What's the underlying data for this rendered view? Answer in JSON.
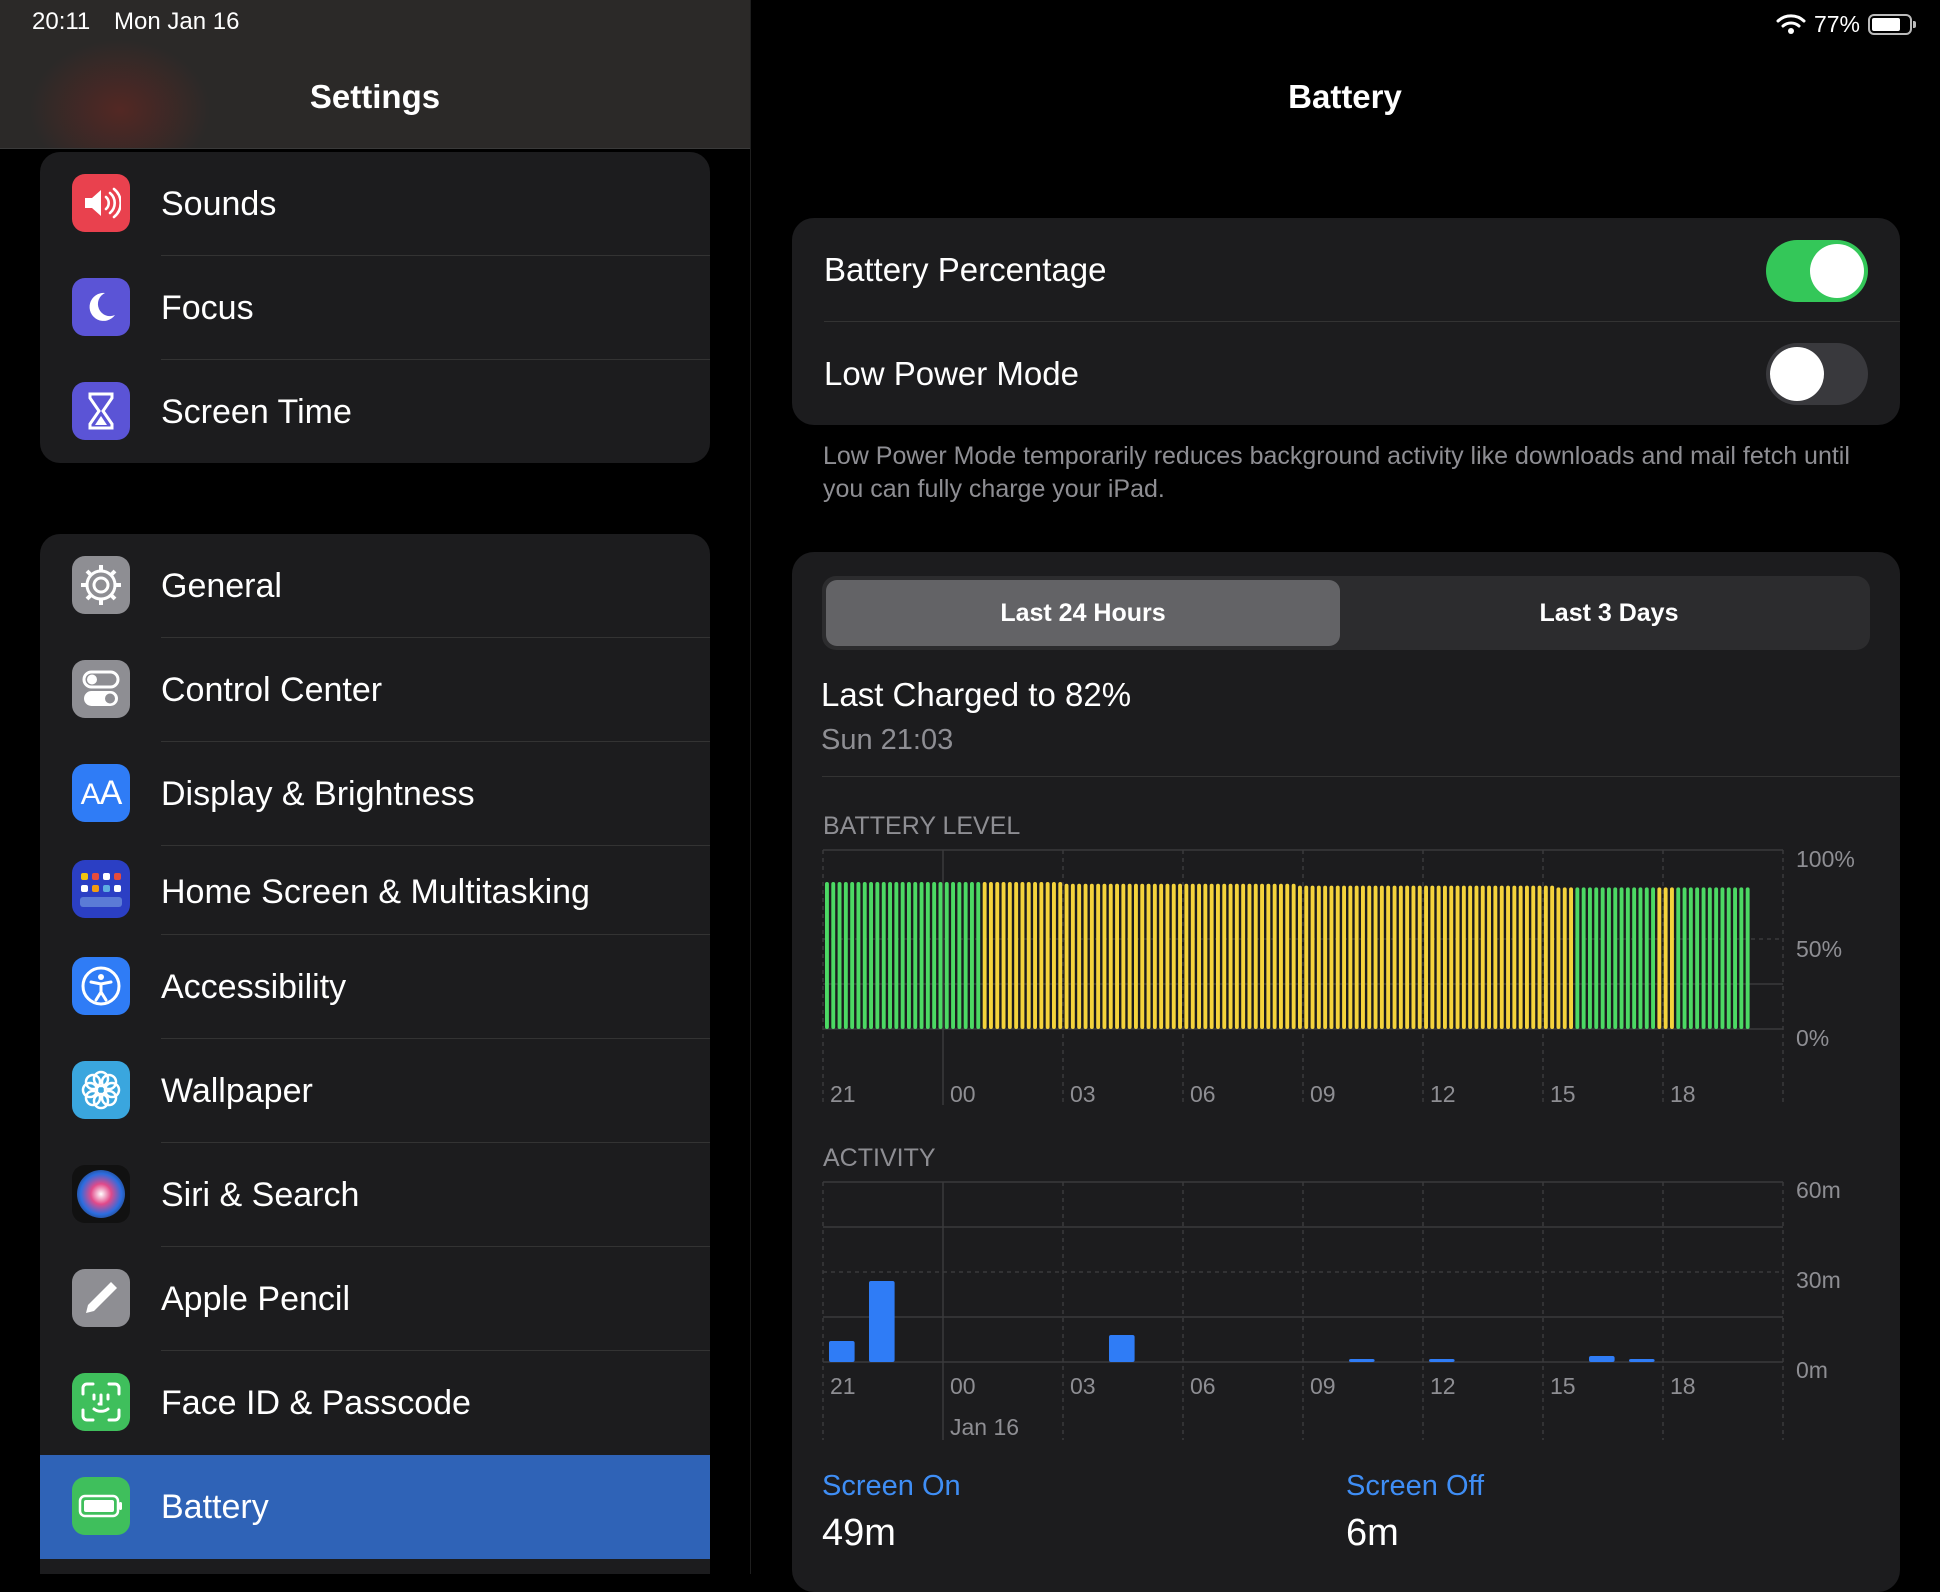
{
  "status": {
    "time": "20:11",
    "date": "Mon Jan 16",
    "battery_pct": "77%",
    "battery_level": 0.77
  },
  "sidebar": {
    "title": "Settings",
    "group1": [
      {
        "label": "Sounds",
        "icon": "speaker-icon",
        "color": "#e9414e"
      },
      {
        "label": "Focus",
        "icon": "moon-icon",
        "color": "#5b54d6"
      },
      {
        "label": "Screen Time",
        "icon": "hourglass-icon",
        "color": "#5b54d6"
      }
    ],
    "group2": [
      {
        "label": "General",
        "icon": "gear-icon",
        "color": "#8e8e93"
      },
      {
        "label": "Control Center",
        "icon": "switches-icon",
        "color": "#8e8e93"
      },
      {
        "label": "Display & Brightness",
        "icon": "text-size-icon",
        "color": "#2f7cf6"
      },
      {
        "label": "Home Screen & Multitasking",
        "icon": "app-grid-icon",
        "color": "#2b3fc4"
      },
      {
        "label": "Accessibility",
        "icon": "accessibility-icon",
        "color": "#2f7cf6"
      },
      {
        "label": "Wallpaper",
        "icon": "flower-icon",
        "color": "#3aa6de"
      },
      {
        "label": "Siri & Search",
        "icon": "siri-icon",
        "color": "#1a1a1a"
      },
      {
        "label": "Apple Pencil",
        "icon": "pencil-icon",
        "color": "#8e8e93"
      },
      {
        "label": "Face ID & Passcode",
        "icon": "face-id-icon",
        "color": "#3fbf5c"
      },
      {
        "label": "Battery",
        "icon": "battery-icon",
        "color": "#3fbf5c"
      }
    ]
  },
  "detail": {
    "title": "Battery",
    "battery_percentage": {
      "label": "Battery Percentage",
      "on": true
    },
    "low_power_mode": {
      "label": "Low Power Mode",
      "on": false
    },
    "low_power_note": "Low Power Mode temporarily reduces background activity like downloads and mail fetch until you can fully charge your iPad.",
    "tabs": [
      {
        "label": "Last 24 Hours",
        "selected": true
      },
      {
        "label": "Last 3 Days",
        "selected": false
      }
    ],
    "last_charged": {
      "title": "Last Charged to 82%",
      "time": "Sun 21:03"
    },
    "screen_on": {
      "label": "Screen On",
      "value": "49m"
    },
    "screen_off": {
      "label": "Screen Off",
      "value": "6m"
    },
    "colors": {
      "green": "#4cd964",
      "yellow": "#f4d33c",
      "blue": "#2f7cf6",
      "toggle_on": "#34c759",
      "toggle_off": "#39393d"
    }
  },
  "chart_data": [
    {
      "type": "bar",
      "title": "BATTERY LEVEL",
      "x_ticks": [
        "21",
        "00",
        "03",
        "06",
        "09",
        "12",
        "15",
        "18"
      ],
      "y_ticks": [
        "100%",
        "50%",
        "0%"
      ],
      "ylim": [
        0,
        100
      ],
      "series": [
        {
          "name": "",
          "values": [
            82,
            82,
            82,
            82,
            82,
            82,
            82,
            82,
            82,
            82,
            82,
            82,
            82,
            82,
            82,
            82,
            82,
            82,
            82,
            82,
            82,
            82,
            82,
            82,
            82,
            82,
            82,
            82,
            82,
            82,
            82,
            82,
            82,
            82,
            82,
            82,
            82,
            82,
            81,
            81,
            81,
            81,
            81,
            81,
            81,
            81,
            81,
            81,
            81,
            81,
            81,
            81,
            81,
            81,
            81,
            81,
            81,
            81,
            81,
            81,
            81,
            81,
            81,
            81,
            81,
            81,
            81,
            81,
            81,
            81,
            81,
            81,
            81,
            81,
            81,
            80,
            80,
            80,
            80,
            80,
            80,
            80,
            80,
            80,
            80,
            80,
            80,
            80,
            80,
            80,
            80,
            80,
            80,
            80,
            80,
            80,
            80,
            80,
            80,
            80,
            80,
            80,
            80,
            80,
            80,
            80,
            80,
            80,
            80,
            80,
            80,
            80,
            80,
            80,
            80,
            80,
            79,
            79,
            79,
            79,
            79,
            79,
            79,
            79,
            79,
            79,
            79,
            79,
            79,
            79,
            79,
            79,
            79,
            79,
            79,
            79,
            79,
            79,
            79,
            79,
            79,
            79,
            79,
            79,
            79,
            79,
            79
          ]
        }
      ],
      "low_power_ranges": [
        [
          8,
          39
        ],
        [
          43,
          44
        ]
      ]
    },
    {
      "type": "bar",
      "title": "ACTIVITY",
      "x_ticks": [
        "21",
        "00",
        "03",
        "06",
        "09",
        "12",
        "15",
        "18"
      ],
      "x_sublabel": "Jan 16",
      "y_ticks": [
        "60m",
        "30m",
        "0m"
      ],
      "ylim": [
        0,
        60
      ],
      "series": [
        {
          "name": "Screen On",
          "values": [
            7,
            27,
            0,
            0,
            0,
            0,
            0,
            9,
            0,
            0,
            0,
            0,
            0,
            1,
            0,
            1,
            0,
            0,
            0,
            2,
            1,
            0,
            0,
            0
          ]
        }
      ]
    }
  ]
}
